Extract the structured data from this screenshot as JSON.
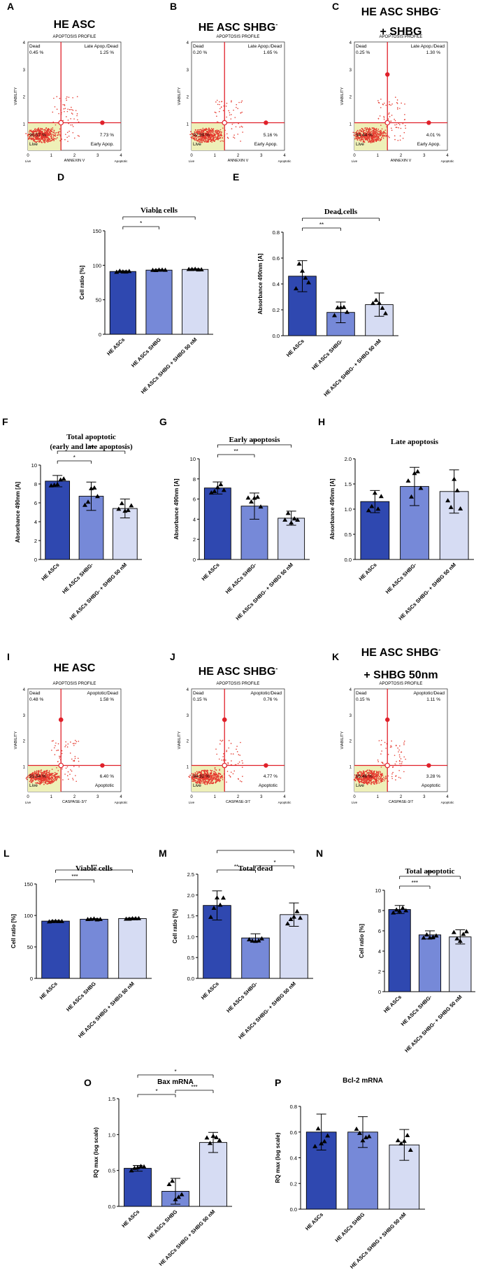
{
  "panel_letters": [
    "A",
    "B",
    "C",
    "D",
    "E",
    "F",
    "G",
    "H",
    "I",
    "J",
    "K",
    "L",
    "M",
    "N",
    "O",
    "P"
  ],
  "colors": {
    "dark": "#2f48b0",
    "mid": "#7689d8",
    "light": "#d6dcf3",
    "red": "#e0202a",
    "scatter": "#e53b30",
    "quad": "#eef0b8",
    "axis": "#000000"
  },
  "flow": [
    {
      "title": "HE ASC",
      "subtitle": "APOPTOSIS PROFILE",
      "ylabel": "VIABILITY",
      "xlabel": "ANNEXIN V",
      "q_tl": "Dead",
      "q_tr": "Late Apop./Dead",
      "q_br": "Early Apop.",
      "q_bl": "Live",
      "pct_tl": "0.45 %",
      "pct_tr": "1.25 %",
      "pct_br": "7.73 %",
      "pct_bl": "90.57 %",
      "corner_l": "Live",
      "corner_r": "Apoptotic",
      "yticks": [
        "1",
        "2",
        "3",
        "4"
      ],
      "xticks": [
        "0",
        "1",
        "2",
        "3",
        "4"
      ]
    },
    {
      "title": "HE ASC SHBG",
      "title_sup": "-",
      "subtitle": "APOPTOSIS PROFILE",
      "ylabel": "VIABILITY",
      "xlabel": "ANNEXIN V",
      "q_tl": "Dead",
      "q_tr": "Late Apop./Dead",
      "q_br": "Early Apop.",
      "q_bl": "Live",
      "pct_tl": "0.20 %",
      "pct_tr": "1.65 %",
      "pct_br": "5.16 %",
      "pct_bl": "92.99 %",
      "corner_l": "Live",
      "corner_r": "Apoptotic",
      "yticks": [
        "1",
        "2",
        "3",
        "4"
      ],
      "xticks": [
        "0",
        "1",
        "2",
        "3",
        "4"
      ]
    },
    {
      "title": "HE ASC SHBG",
      "title_sup": "-",
      "title2": "+ SHBG",
      "subtitle": "APOPTOSIS PROFILE",
      "ylabel": "VIABILITY",
      "xlabel": "ANNEXIN V",
      "q_tl": "Dead",
      "q_tr": "Late Apop./Dead",
      "q_br": "Early Apop.",
      "q_bl": "Live",
      "pct_tl": "0.25 %",
      "pct_tr": "1.30 %",
      "pct_br": "4.01 %",
      "pct_bl": "94.44 %",
      "corner_l": "Live",
      "corner_r": "Apoptotic",
      "yticks": [
        "1",
        "2",
        "3",
        "4"
      ],
      "xticks": [
        "0",
        "1",
        "2",
        "3",
        "4"
      ]
    },
    {
      "title": "HE ASC",
      "subtitle": "APOPTOSIS PROFILE",
      "ylabel": "VIABILITY",
      "xlabel": "CASPASE-3/7",
      "q_tl": "Dead",
      "q_tr": "Apoptotic/Dead",
      "q_br": "Apoptotic",
      "q_bl": "Live",
      "pct_tl": "0.48 %",
      "pct_tr": "1.58 %",
      "pct_br": "6.40 %",
      "pct_bl": "91.54 %",
      "corner_l": "Live",
      "corner_r": "Apoptotic",
      "yticks": [
        "1",
        "2",
        "3",
        "4"
      ],
      "xticks": [
        "0",
        "1",
        "2",
        "3",
        "4"
      ]
    },
    {
      "title": "HE ASC SHBG",
      "title_sup": "-",
      "subtitle": "APOPTOSIS PROFILE",
      "ylabel": "VIABILITY",
      "xlabel": "CASPASE-3/7",
      "q_tl": "Dead",
      "q_tr": "Apoptotic/Dead",
      "q_br": "Apoptotic",
      "q_bl": "Live",
      "pct_tl": "0.15 %",
      "pct_tr": "0.76 %",
      "pct_br": "4.77 %",
      "pct_bl": "94.32 %",
      "corner_l": "Live",
      "corner_r": "Apoptotic",
      "yticks": [
        "1",
        "2",
        "3",
        "4"
      ],
      "xticks": [
        "0",
        "1",
        "2",
        "3",
        "4"
      ]
    },
    {
      "title": "HE ASC SHBG",
      "title_sup": "-",
      "title2": "+ SHBG 50nm",
      "subtitle": "APOPTOSIS PROFILE",
      "ylabel": "VIABILITY",
      "xlabel": "CASPASE-3/7",
      "q_tl": "Dead",
      "q_tr": "Apoptotic/Dead",
      "q_br": "Apoptotic",
      "q_bl": "Live",
      "pct_tl": "0.15 %",
      "pct_tr": "1.11 %",
      "pct_br": "3.28 %",
      "pct_bl": "95.46 %",
      "corner_l": "Live",
      "corner_r": "Apoptotic",
      "yticks": [
        "1",
        "2",
        "3",
        "4"
      ],
      "xticks": [
        "0",
        "1",
        "2",
        "3",
        "4"
      ]
    }
  ],
  "chart_data": [
    {
      "id": "D",
      "type": "bar",
      "title": "Viable cells",
      "ylabel": "Cell ratio [%]",
      "ylim": [
        0,
        150
      ],
      "yticks": [
        "0",
        "50",
        "100",
        "150"
      ],
      "categories": [
        "HE ASCs",
        "HE ASCs SHBG",
        "HE ASCs SHBG + SHBG 50 nM"
      ],
      "values": [
        91,
        93,
        94
      ],
      "errors": [
        1,
        1,
        1
      ],
      "sig": [
        {
          "from": 0,
          "to": 1,
          "label": "*"
        },
        {
          "from": 0,
          "to": 2,
          "label": "***"
        }
      ]
    },
    {
      "id": "E",
      "type": "bar",
      "title": "Dead cells",
      "ylabel": "Absorbance 490nm [A]",
      "ylim": [
        0,
        0.8
      ],
      "yticks": [
        "0.0",
        "0.2",
        "0.4",
        "0.6",
        "0.8"
      ],
      "categories": [
        "HE ASCs",
        "HE ASCs SHBG-",
        "HE ASCs SHBG- + SHBG 50 nM"
      ],
      "values": [
        0.46,
        0.18,
        0.24
      ],
      "errors": [
        0.12,
        0.08,
        0.09
      ],
      "sig": [
        {
          "from": 0,
          "to": 1,
          "label": "**"
        },
        {
          "from": 0,
          "to": 2,
          "label": "**"
        }
      ]
    },
    {
      "id": "F",
      "type": "bar",
      "title": "Total apoptotic",
      "title2": "(early and late apoptosis)",
      "ylabel": "Absorbance 490nm [A]",
      "ylim": [
        0,
        10
      ],
      "yticks": [
        "0",
        "2",
        "4",
        "6",
        "8",
        "10"
      ],
      "categories": [
        "HE ASCs",
        "HE ASCs SHBG-",
        "HE ASCs SHBG- + SHBG 50 nM"
      ],
      "values": [
        8.3,
        6.7,
        5.4
      ],
      "errors": [
        0.6,
        1.5,
        1.0
      ],
      "sig": [
        {
          "from": 0,
          "to": 1,
          "label": "*"
        },
        {
          "from": 0,
          "to": 2,
          "label": "***"
        }
      ]
    },
    {
      "id": "G",
      "type": "bar",
      "title": "Early apoptosis",
      "ylabel": "Absorbance 490nm [A]",
      "ylim": [
        0,
        10
      ],
      "yticks": [
        "0",
        "2",
        "4",
        "6",
        "8",
        "10"
      ],
      "categories": [
        "HE ASCs",
        "HE ASCs SHBG-",
        "HE ASCs SHBG- + SHBG 50 nM"
      ],
      "values": [
        7.1,
        5.3,
        4.1
      ],
      "errors": [
        0.6,
        1.3,
        0.7
      ],
      "sig": [
        {
          "from": 0,
          "to": 1,
          "label": "**"
        },
        {
          "from": 0,
          "to": 2,
          "label": "***"
        }
      ]
    },
    {
      "id": "H",
      "type": "bar",
      "title": "Late apoptosis",
      "ylabel": "Absorbance 490nm [A]",
      "ylim": [
        0,
        2.0
      ],
      "yticks": [
        "0.0",
        "0.5",
        "1.0",
        "1.5",
        "2.0"
      ],
      "categories": [
        "HE ASCs",
        "HE ASCs SHBG-",
        "HE ASCs SHBG- + SHBG 50 nM"
      ],
      "values": [
        1.15,
        1.45,
        1.35
      ],
      "errors": [
        0.22,
        0.38,
        0.43
      ],
      "sig": []
    },
    {
      "id": "L",
      "type": "bar",
      "title": "Viable cells",
      "ylabel": "Cell ratio [%]",
      "ylim": [
        0,
        150
      ],
      "yticks": [
        "0",
        "50",
        "100",
        "150"
      ],
      "categories": [
        "HE ASCs",
        "HE ASCs SHBG",
        "HE ASCs SHBG + SHBG 50 nM"
      ],
      "values": [
        91,
        94,
        95
      ],
      "errors": [
        1,
        1,
        1
      ],
      "sig": [
        {
          "from": 0,
          "to": 1,
          "label": "***"
        },
        {
          "from": 0,
          "to": 2,
          "label": "***"
        }
      ]
    },
    {
      "id": "M",
      "type": "bar",
      "title": "Total dead",
      "ylabel": "Cell ratio [%]",
      "ylim": [
        0,
        2.5
      ],
      "yticks": [
        "0.0",
        "0.5",
        "1.0",
        "1.5",
        "2.0",
        "2.5"
      ],
      "categories": [
        "HE ASCs",
        "HE ASCs SHBG-",
        "HE ASCs SHBG- + SHBG 50 nM"
      ],
      "values": [
        1.75,
        0.97,
        1.53
      ],
      "errors": [
        0.35,
        0.1,
        0.28
      ],
      "sig": [
        {
          "from": 0,
          "to": 1,
          "label": "**"
        },
        {
          "from": 1,
          "to": 2,
          "label": "*"
        },
        {
          "from": 0,
          "to": 2,
          "label": ""
        }
      ]
    },
    {
      "id": "N",
      "type": "bar",
      "title": "Total apoptotic",
      "ylabel": "Cell ratio [%]",
      "ylim": [
        0,
        10
      ],
      "yticks": [
        "0",
        "2",
        "4",
        "6",
        "8",
        "10"
      ],
      "categories": [
        "HE ASCs",
        "HE ASCs SHBG-",
        "HE ASCs SHBG- + SHBG 50 nM"
      ],
      "values": [
        8.1,
        5.6,
        5.4
      ],
      "errors": [
        0.4,
        0.4,
        0.7
      ],
      "sig": [
        {
          "from": 0,
          "to": 1,
          "label": "***"
        },
        {
          "from": 0,
          "to": 2,
          "label": "***"
        }
      ]
    },
    {
      "id": "O",
      "type": "bar",
      "title": "Bax mRNA",
      "title_italic": "Bax",
      "title_rest": " mRNA",
      "ylabel": "RQ max (log scale)",
      "ylim": [
        0,
        1.5
      ],
      "yticks": [
        "0.0",
        "0.5",
        "1.0",
        "1.5"
      ],
      "categories": [
        "HE ASCs",
        "HE ASCs SHBG",
        "HE ASCs SHBG + SHBG 50 nM"
      ],
      "values": [
        0.53,
        0.21,
        0.89
      ],
      "errors": [
        0.04,
        0.18,
        0.14
      ],
      "sig": [
        {
          "from": 0,
          "to": 1,
          "label": "*"
        },
        {
          "from": 1,
          "to": 2,
          "label": "***"
        },
        {
          "from": 0,
          "to": 2,
          "label": "*"
        }
      ]
    },
    {
      "id": "P",
      "type": "bar",
      "title": "Bcl-2 mRNA",
      "title_italic": "Bcl-2",
      "title_rest": " mRNA",
      "ylabel": "RQ max (log scale)",
      "ylim": [
        0,
        0.8
      ],
      "yticks": [
        "0.0",
        "0.2",
        "0.4",
        "0.6",
        "0.8"
      ],
      "categories": [
        "HE ASCs",
        "HE ASCs SHBG",
        "HE ASCs SHBG + SHBG 50 nM"
      ],
      "values": [
        0.6,
        0.6,
        0.5
      ],
      "errors": [
        0.14,
        0.12,
        0.12
      ],
      "sig": []
    }
  ]
}
